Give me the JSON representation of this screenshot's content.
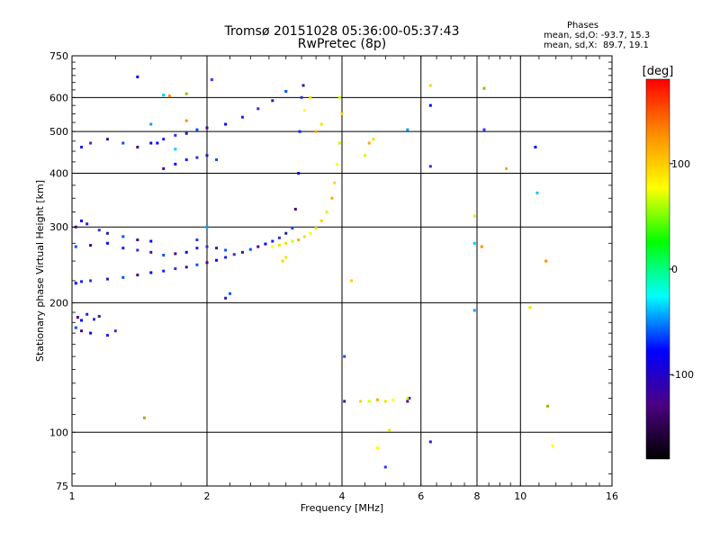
{
  "title_line1": "Tromsø 20151028 05:36:00-05:37:43",
  "title_line2": "RwPretec (8p)",
  "phases": {
    "title": "Phases",
    "o_line": "mean, sd,O: -93.7, 15.3",
    "x_line": "mean, sd,X:  89.7, 19.1"
  },
  "chart_data": {
    "type": "scatter",
    "xlabel": "Frequency [MHz]",
    "ylabel": "Stationary phase Virtual Height [km]",
    "x_scale": "log",
    "y_scale": "log",
    "xlim": [
      1,
      16
    ],
    "ylim": [
      75,
      750
    ],
    "x_ticks": [
      1,
      2,
      4,
      6,
      8,
      10,
      16
    ],
    "x_tick_labels": [
      "1",
      "2",
      "4",
      "6",
      "8",
      "10",
      "16"
    ],
    "y_ticks": [
      75,
      100,
      200,
      300,
      400,
      500,
      600,
      750
    ],
    "y_tick_labels": [
      "75",
      "100",
      "200",
      "300",
      "400",
      "500",
      "600",
      "750"
    ],
    "grid": true,
    "colorbar": {
      "label": "[deg]",
      "range": [
        -180,
        180
      ],
      "ticks": [
        100,
        0,
        -100
      ],
      "tick_labels": [
        "100",
        "0",
        "-100"
      ],
      "colors": [
        "#000000",
        "#4b0082",
        "#0000ff",
        "#00ffff",
        "#00ff00",
        "#ffff00",
        "#ff8c00",
        "#ff0000"
      ]
    },
    "series": [
      {
        "color_hint": "O-mode traces, phase near -95 deg",
        "points": [
          [
            1.02,
            222
          ],
          [
            1.05,
            224
          ],
          [
            1.1,
            225
          ],
          [
            1.2,
            227
          ],
          [
            1.3,
            229
          ],
          [
            1.4,
            232
          ],
          [
            1.5,
            235
          ],
          [
            1.6,
            237
          ],
          [
            1.7,
            240
          ],
          [
            1.8,
            242
          ],
          [
            1.9,
            245
          ],
          [
            2.0,
            248
          ],
          [
            2.1,
            251
          ],
          [
            2.2,
            255
          ],
          [
            2.3,
            259
          ],
          [
            2.4,
            262
          ],
          [
            2.5,
            266
          ],
          [
            2.6,
            270
          ],
          [
            2.7,
            274
          ],
          [
            2.8,
            278
          ],
          [
            2.9,
            283
          ],
          [
            3.0,
            290
          ],
          [
            3.1,
            298
          ],
          [
            3.15,
            330
          ],
          [
            3.2,
            400
          ],
          [
            3.22,
            500
          ],
          [
            3.25,
            600
          ],
          [
            3.28,
            640
          ],
          [
            1.02,
            270
          ],
          [
            1.1,
            272
          ],
          [
            1.2,
            275
          ],
          [
            1.3,
            268
          ],
          [
            1.4,
            265
          ],
          [
            1.5,
            262
          ],
          [
            1.6,
            258
          ],
          [
            1.7,
            260
          ],
          [
            1.8,
            262
          ],
          [
            1.9,
            268
          ],
          [
            2.0,
            270
          ],
          [
            2.1,
            268
          ],
          [
            2.2,
            265
          ],
          [
            1.02,
            300
          ],
          [
            1.05,
            310
          ],
          [
            1.08,
            305
          ],
          [
            1.15,
            295
          ],
          [
            1.2,
            290
          ],
          [
            1.3,
            285
          ],
          [
            1.4,
            280
          ],
          [
            1.5,
            278
          ],
          [
            1.05,
            460
          ],
          [
            1.1,
            470
          ],
          [
            1.2,
            480
          ],
          [
            1.3,
            470
          ],
          [
            1.4,
            460
          ],
          [
            1.5,
            470
          ],
          [
            1.6,
            480
          ],
          [
            1.7,
            490
          ],
          [
            1.8,
            495
          ],
          [
            1.9,
            505
          ],
          [
            2.0,
            510
          ],
          [
            2.2,
            520
          ],
          [
            2.4,
            540
          ],
          [
            2.6,
            565
          ],
          [
            2.8,
            590
          ],
          [
            3.0,
            620
          ],
          [
            1.6,
            410
          ],
          [
            1.7,
            420
          ],
          [
            1.8,
            430
          ],
          [
            1.9,
            435
          ],
          [
            2.0,
            440
          ],
          [
            2.1,
            430
          ],
          [
            1.03,
            185
          ],
          [
            1.05,
            182
          ],
          [
            1.08,
            188
          ],
          [
            1.12,
            183
          ],
          [
            1.15,
            186
          ],
          [
            1.02,
            175
          ],
          [
            1.05,
            172
          ],
          [
            1.1,
            170
          ],
          [
            1.2,
            168
          ],
          [
            1.25,
            172
          ],
          [
            4.05,
            118
          ],
          [
            4.05,
            150
          ],
          [
            5.6,
            118
          ],
          [
            5.65,
            120
          ],
          [
            6.3,
            95
          ],
          [
            6.3,
            415
          ],
          [
            2.2,
            205
          ],
          [
            2.25,
            210
          ]
        ]
      },
      {
        "color_hint": "X-mode traces, phase near +90 deg",
        "points": [
          [
            2.8,
            270
          ],
          [
            2.9,
            272
          ],
          [
            3.0,
            275
          ],
          [
            3.1,
            278
          ],
          [
            3.2,
            280
          ],
          [
            3.3,
            285
          ],
          [
            3.4,
            290
          ],
          [
            3.5,
            298
          ],
          [
            3.6,
            310
          ],
          [
            3.7,
            325
          ],
          [
            3.8,
            350
          ],
          [
            3.85,
            380
          ],
          [
            3.9,
            420
          ],
          [
            3.95,
            470
          ],
          [
            4.0,
            550
          ],
          [
            3.95,
            600
          ],
          [
            3.5,
            500
          ],
          [
            3.6,
            520
          ],
          [
            3.3,
            560
          ],
          [
            3.4,
            600
          ],
          [
            4.4,
            118
          ],
          [
            4.6,
            118
          ],
          [
            4.8,
            119
          ],
          [
            5.0,
            118
          ],
          [
            5.2,
            119
          ],
          [
            5.6,
            120
          ],
          [
            4.2,
            225
          ],
          [
            4.5,
            440
          ],
          [
            4.6,
            470
          ],
          [
            4.7,
            480
          ],
          [
            4.8,
            92
          ],
          [
            5.1,
            101
          ],
          [
            6.3,
            640
          ],
          [
            7.9,
            318
          ],
          [
            9.3,
            410
          ],
          [
            10.5,
            195
          ],
          [
            11.8,
            93
          ],
          [
            3.0,
            255
          ],
          [
            2.95,
            250
          ]
        ]
      },
      {
        "color_hint": "isolated scattered returns",
        "points": [
          [
            1.4,
            670
          ],
          [
            1.6,
            608
          ],
          [
            1.65,
            605
          ],
          [
            1.8,
            612
          ],
          [
            2.05,
            660
          ],
          [
            1.5,
            520
          ],
          [
            1.55,
            470
          ],
          [
            1.7,
            455
          ],
          [
            1.8,
            530
          ],
          [
            1.45,
            108
          ],
          [
            5.0,
            83
          ],
          [
            5.6,
            505
          ],
          [
            6.3,
            575
          ],
          [
            7.9,
            275
          ],
          [
            8.2,
            270
          ],
          [
            8.3,
            630
          ],
          [
            8.3,
            505
          ],
          [
            7.9,
            192
          ],
          [
            10.8,
            460
          ],
          [
            10.9,
            360
          ],
          [
            11.4,
            250
          ],
          [
            11.5,
            115
          ],
          [
            1.9,
            280
          ],
          [
            2.0,
            300
          ]
        ]
      }
    ]
  }
}
